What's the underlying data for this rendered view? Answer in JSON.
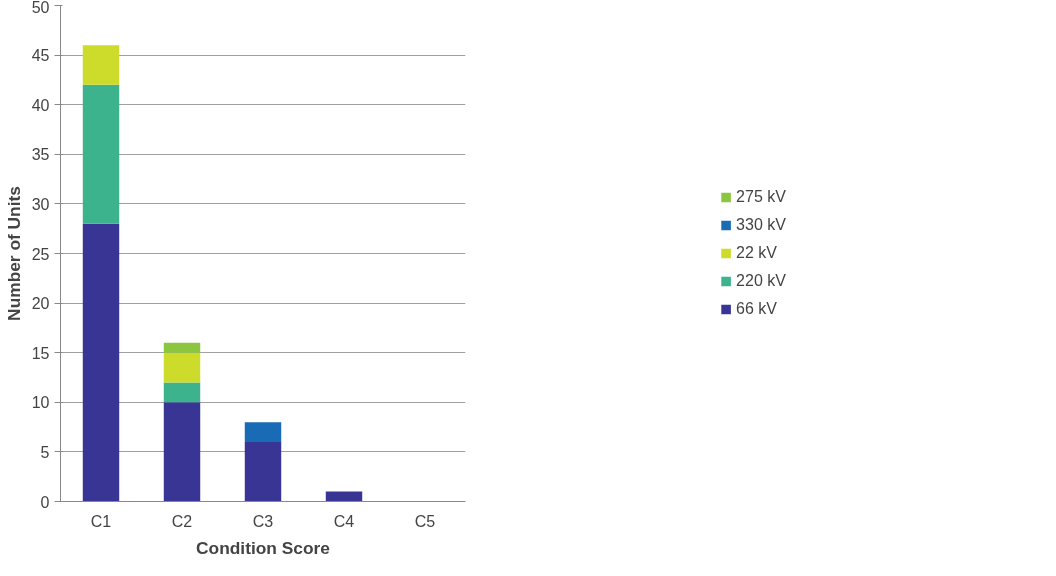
{
  "chart_data": {
    "type": "bar",
    "stacked": true,
    "xlabel": "Condition Score",
    "ylabel": "Number of Units",
    "categories": [
      "C1",
      "C2",
      "C3",
      "C4",
      "C5"
    ],
    "series": [
      {
        "name": "66 kV",
        "color": "#383594",
        "values": [
          28,
          10,
          6,
          1,
          0
        ]
      },
      {
        "name": "220 kV",
        "color": "#3db38d",
        "values": [
          14,
          2,
          0,
          0,
          0
        ]
      },
      {
        "name": "22 kV",
        "color": "#cddc2a",
        "values": [
          4,
          3,
          0,
          0,
          0
        ]
      },
      {
        "name": "330 kV",
        "color": "#1a6bb5",
        "values": [
          0,
          0,
          2,
          0,
          0
        ]
      },
      {
        "name": "275 kV",
        "color": "#8cc63f",
        "values": [
          0,
          1,
          0,
          0,
          0
        ]
      }
    ],
    "ylim": [
      0,
      50
    ],
    "yticks": [
      0,
      5,
      10,
      15,
      20,
      25,
      30,
      35,
      40,
      45,
      50
    ],
    "grid": "y",
    "legend": "right"
  }
}
